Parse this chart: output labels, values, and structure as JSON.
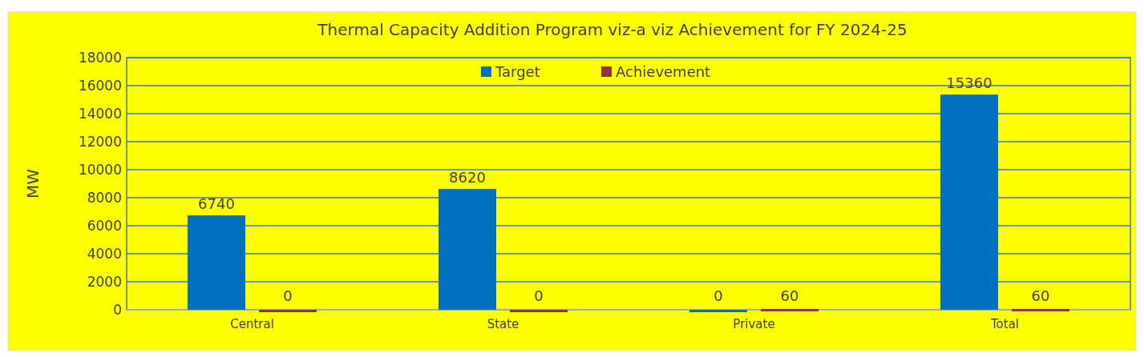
{
  "chart_data": {
    "type": "bar",
    "title": "Thermal Capacity Addition Program viz-a viz   Achievement for FY 2024-25",
    "ylabel": "MW",
    "categories": [
      "Central",
      "State",
      "Private",
      "Total"
    ],
    "series": [
      {
        "name": "Target",
        "color": "#0070c0",
        "values": [
          6740,
          8620,
          0,
          15360
        ]
      },
      {
        "name": "Achievement",
        "color": "#993333",
        "values": [
          0,
          0,
          60,
          60
        ]
      }
    ],
    "ylim": [
      0,
      18000
    ],
    "yticks": [
      0,
      2000,
      4000,
      6000,
      8000,
      10000,
      12000,
      14000,
      16000,
      18000
    ],
    "grid": "y",
    "legend": "top",
    "data_labels": true
  }
}
